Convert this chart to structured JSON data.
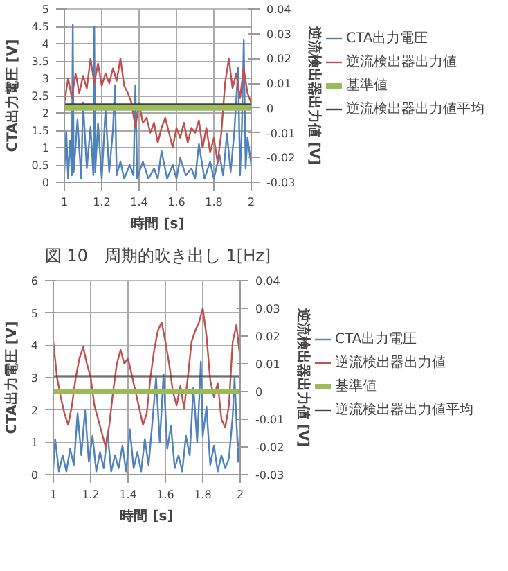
{
  "chart_data": [
    {
      "type": "line",
      "xlabel": "時間 [s]",
      "ylabel": "CTA出力電圧 [V]",
      "y2label": "逆流検出器出力値 [V]",
      "annotations": [
        "図 10　周期的吹き出し 1[Hz]"
      ],
      "xlim": [
        1,
        2
      ],
      "xticks": [
        1,
        1.2,
        1.4,
        1.6,
        1.8,
        2
      ],
      "ylim": [
        0,
        5
      ],
      "yticks": [
        0,
        0.5,
        1,
        1.5,
        2,
        2.5,
        3,
        3.5,
        4,
        4.5,
        5
      ],
      "y2lim": [
        -0.03,
        0.04
      ],
      "y2ticks": [
        -0.03,
        -0.02,
        -0.01,
        0,
        0.01,
        0.02,
        0.03,
        0.04
      ],
      "grid": true,
      "legend": "right",
      "series": [
        {
          "name": "CTA出力電圧",
          "color": "#4f81bd",
          "x": [
            1.0,
            1.01,
            1.02,
            1.03,
            1.04,
            1.045,
            1.05,
            1.07,
            1.09,
            1.1,
            1.12,
            1.14,
            1.155,
            1.16,
            1.165,
            1.18,
            1.2,
            1.22,
            1.24,
            1.26,
            1.27,
            1.28,
            1.3,
            1.32,
            1.35,
            1.37,
            1.38,
            1.39,
            1.42,
            1.45,
            1.48,
            1.5,
            1.52,
            1.55,
            1.58,
            1.6,
            1.62,
            1.65,
            1.68,
            1.7,
            1.72,
            1.75,
            1.78,
            1.8,
            1.83,
            1.85,
            1.87,
            1.89,
            1.91,
            1.93,
            1.94,
            1.95,
            1.96,
            1.97,
            1.98,
            2.0
          ],
          "values": [
            0.3,
            1.5,
            0.1,
            1.2,
            0.2,
            4.55,
            0.3,
            1.8,
            0.1,
            2.3,
            0.4,
            1.6,
            0.2,
            4.5,
            0.3,
            1.7,
            0.1,
            2.1,
            0.3,
            1.5,
            2.8,
            0.2,
            0.6,
            0.1,
            0.5,
            0.2,
            2.8,
            0.1,
            0.6,
            0.1,
            0.4,
            0.1,
            0.9,
            0.1,
            0.5,
            0.1,
            0.7,
            0.2,
            0.4,
            0.1,
            1.1,
            0.1,
            0.6,
            0.1,
            0.8,
            0.2,
            1.4,
            0.3,
            1.5,
            3.3,
            0.2,
            1.6,
            4.1,
            0.4,
            1.3,
            0.5
          ]
        },
        {
          "name": "逆流検出器出力値",
          "color": "#c0504d",
          "axis": "y2",
          "x": [
            1.0,
            1.02,
            1.04,
            1.06,
            1.08,
            1.1,
            1.12,
            1.14,
            1.16,
            1.18,
            1.2,
            1.22,
            1.24,
            1.26,
            1.28,
            1.3,
            1.32,
            1.34,
            1.36,
            1.38,
            1.4,
            1.42,
            1.44,
            1.46,
            1.48,
            1.5,
            1.52,
            1.54,
            1.56,
            1.58,
            1.6,
            1.62,
            1.64,
            1.66,
            1.68,
            1.7,
            1.72,
            1.74,
            1.76,
            1.78,
            1.8,
            1.82,
            1.84,
            1.86,
            1.88,
            1.9,
            1.92,
            1.94,
            1.96,
            1.98,
            2.0
          ],
          "values": [
            0.002,
            0.012,
            0.004,
            0.014,
            0.006,
            0.013,
            0.008,
            0.02,
            0.01,
            0.018,
            0.009,
            0.014,
            0.01,
            0.016,
            0.011,
            0.02,
            0.009,
            0.006,
            0.002,
            -0.008,
            0.002,
            -0.006,
            -0.004,
            -0.01,
            -0.006,
            -0.014,
            -0.008,
            -0.004,
            -0.01,
            -0.016,
            -0.008,
            -0.012,
            -0.006,
            -0.014,
            -0.008,
            -0.01,
            -0.005,
            -0.016,
            -0.008,
            -0.018,
            -0.012,
            -0.022,
            -0.01,
            0.01,
            0.02,
            0.008,
            0.014,
            0.004,
            0.016,
            0.006,
            0.002
          ]
        },
        {
          "name": "基準値",
          "color": "#9bbb59",
          "axis": "y2",
          "x": [
            1,
            2
          ],
          "values": [
            0,
            0
          ]
        },
        {
          "name": "逆流検出器出力値平均",
          "color": "#404040",
          "axis": "y2",
          "x": [
            1,
            2
          ],
          "values": [
            0.0015,
            0.0015
          ]
        }
      ]
    },
    {
      "type": "line",
      "xlabel": "時間 [s]",
      "ylabel": "CTA出力電圧 [V]",
      "y2label": "逆流検出器出力値 [V]",
      "xlim": [
        1,
        2
      ],
      "xticks": [
        1,
        1.2,
        1.4,
        1.6,
        1.8,
        2
      ],
      "ylim": [
        0,
        6
      ],
      "yticks": [
        0,
        1,
        2,
        3,
        4,
        5,
        6
      ],
      "y2lim": [
        -0.03,
        0.04
      ],
      "y2ticks": [
        -0.03,
        -0.02,
        -0.01,
        0,
        0.01,
        0.02,
        0.03,
        0.04
      ],
      "grid": true,
      "legend": "right",
      "series": [
        {
          "name": "CTA出力電圧",
          "color": "#4f81bd",
          "x": [
            1.0,
            1.01,
            1.03,
            1.05,
            1.07,
            1.09,
            1.11,
            1.13,
            1.15,
            1.17,
            1.19,
            1.21,
            1.23,
            1.25,
            1.27,
            1.29,
            1.31,
            1.33,
            1.35,
            1.37,
            1.39,
            1.41,
            1.43,
            1.45,
            1.47,
            1.49,
            1.51,
            1.53,
            1.55,
            1.57,
            1.59,
            1.61,
            1.63,
            1.65,
            1.67,
            1.69,
            1.71,
            1.73,
            1.75,
            1.77,
            1.79,
            1.8,
            1.82,
            1.84,
            1.86,
            1.88,
            1.9,
            1.92,
            1.94,
            1.96,
            1.97,
            1.99,
            2.0
          ],
          "values": [
            0.2,
            1.1,
            0.1,
            0.6,
            0.1,
            0.8,
            0.3,
            1.9,
            0.6,
            2.0,
            0.4,
            1.2,
            0.1,
            0.7,
            0.2,
            1.3,
            0.1,
            0.6,
            0.2,
            0.9,
            0.1,
            1.4,
            0.2,
            0.7,
            0.1,
            1.1,
            0.3,
            1.6,
            3.0,
            1.0,
            3.1,
            0.8,
            1.5,
            0.2,
            0.6,
            0.1,
            1.2,
            0.6,
            2.7,
            1.0,
            3.5,
            1.2,
            2.1,
            0.3,
            0.9,
            0.1,
            0.6,
            0.2,
            0.5,
            1.8,
            3.0,
            0.4,
            1.6
          ]
        },
        {
          "name": "逆流検出器出力値",
          "color": "#c0504d",
          "axis": "y2",
          "x": [
            1.0,
            1.02,
            1.04,
            1.06,
            1.08,
            1.1,
            1.12,
            1.14,
            1.16,
            1.18,
            1.2,
            1.22,
            1.24,
            1.26,
            1.28,
            1.3,
            1.32,
            1.34,
            1.36,
            1.38,
            1.4,
            1.42,
            1.44,
            1.46,
            1.48,
            1.5,
            1.52,
            1.54,
            1.56,
            1.58,
            1.6,
            1.62,
            1.64,
            1.66,
            1.68,
            1.7,
            1.72,
            1.74,
            1.76,
            1.78,
            1.8,
            1.82,
            1.84,
            1.86,
            1.88,
            1.9,
            1.92,
            1.94,
            1.96,
            1.98,
            2.0
          ],
          "values": [
            0.018,
            0.005,
            -0.002,
            -0.008,
            -0.012,
            -0.005,
            0.005,
            0.012,
            0.016,
            0.01,
            0.005,
            -0.005,
            -0.01,
            -0.015,
            -0.02,
            -0.012,
            0.0,
            0.01,
            0.015,
            0.01,
            0.012,
            0.006,
            0.0,
            -0.006,
            -0.012,
            -0.008,
            0.005,
            0.015,
            0.022,
            0.025,
            0.018,
            0.01,
            0.0,
            -0.005,
            0.002,
            -0.006,
            0.005,
            0.018,
            0.022,
            0.025,
            0.03,
            0.02,
            0.004,
            -0.002,
            0.003,
            -0.01,
            -0.013,
            -0.005,
            0.018,
            0.024,
            0.012
          ]
        },
        {
          "name": "基準値",
          "color": "#9bbb59",
          "axis": "y2",
          "x": [
            1,
            2
          ],
          "values": [
            0,
            0
          ]
        },
        {
          "name": "逆流検出器出力値平均",
          "color": "#404040",
          "axis": "y2",
          "x": [
            1,
            2
          ],
          "values": [
            0.0056,
            0.0056
          ]
        }
      ]
    }
  ]
}
